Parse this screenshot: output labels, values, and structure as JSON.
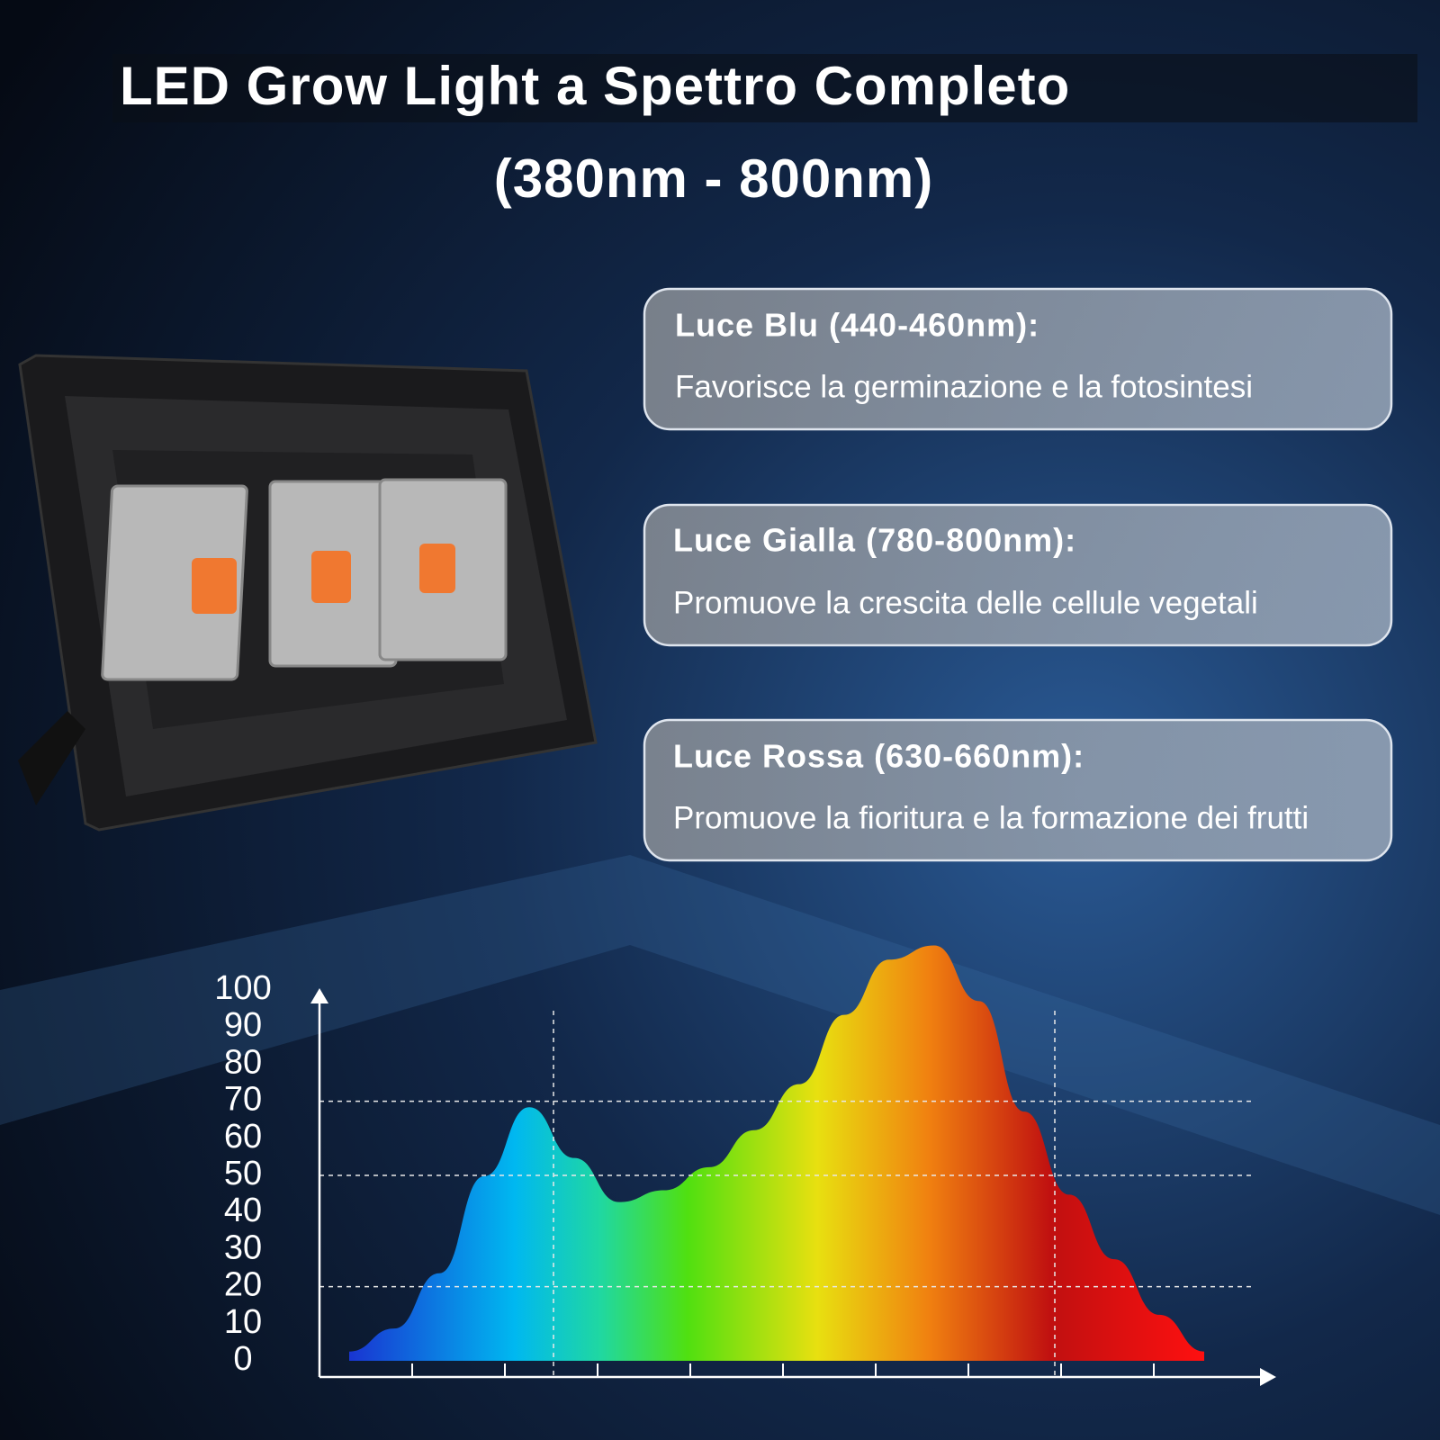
{
  "header": {
    "title_line1": "LED Grow Light a Spettro Completo",
    "title_line2": "(380nm - 800nm)"
  },
  "cards": [
    {
      "title": "Luce Blu (440-460nm):",
      "text": "Favorisce la germinazione e la fotosintesi"
    },
    {
      "title": "Luce Gialla (780-800nm):",
      "text": "Promuove la crescita delle cellule vegetali"
    },
    {
      "title": "Luce Rossa (630-660nm):",
      "text": "Promuove la fioritura e la formazione dei frutti"
    }
  ],
  "chart_data": {
    "type": "area",
    "categories": [
      null,
      null,
      null,
      null,
      null,
      null,
      null,
      null,
      null,
      null,
      null,
      null,
      null,
      null,
      null,
      null,
      null,
      null,
      null,
      null
    ],
    "values": [
      2.5,
      8.7,
      23.6,
      49.8,
      68.4,
      54.7,
      42.8,
      46,
      52.2,
      62.2,
      74.6,
      93.3,
      108.2,
      112,
      97,
      67.2,
      44.8,
      27.4,
      12.4,
      2.5
    ],
    "ylim": [
      0,
      100
    ],
    "yticks": [
      0,
      10,
      20,
      30,
      40,
      50,
      60,
      70,
      80,
      90,
      100
    ],
    "reference_lines": [
      20,
      50,
      70
    ]
  }
}
